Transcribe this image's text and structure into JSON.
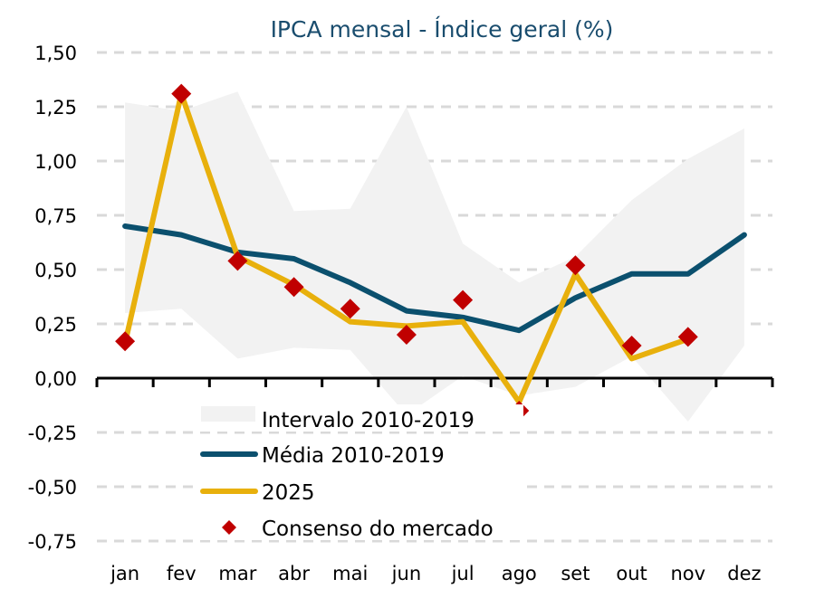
{
  "chart_data": {
    "type": "line",
    "title": "IPCA mensal - Índice geral (%)",
    "xlabel": "",
    "ylabel": "",
    "categories": [
      "jan",
      "fev",
      "mar",
      "abr",
      "mai",
      "jun",
      "jul",
      "ago",
      "set",
      "out",
      "nov",
      "dez"
    ],
    "ylim": [
      -0.75,
      1.5
    ],
    "yticks": [
      1.5,
      1.25,
      1.0,
      0.75,
      0.5,
      0.25,
      0.0,
      -0.25,
      -0.5,
      -0.75
    ],
    "ytick_labels": [
      "1,50",
      "1,25",
      "1,00",
      "0,75",
      "0,50",
      "0,25",
      "0,00",
      "-0,25",
      "-0,50",
      "-0,75"
    ],
    "grid": "horizontal dashed",
    "legend_placement": "bottom-left inside",
    "band": {
      "name": "Intervalo 2010-2019",
      "upper": [
        1.27,
        1.23,
        1.32,
        0.77,
        0.78,
        1.25,
        0.62,
        0.44,
        0.56,
        0.82,
        1.01,
        1.15
      ],
      "lower": [
        0.3,
        0.32,
        0.09,
        0.14,
        0.13,
        -0.17,
        0.01,
        -0.08,
        -0.04,
        0.1,
        -0.2,
        0.15
      ],
      "color": "#f2f2f2"
    },
    "series": [
      {
        "name": "Média 2010-2019",
        "type": "line",
        "color": "#0b506e",
        "values": [
          0.7,
          0.66,
          0.58,
          0.55,
          0.44,
          0.31,
          0.28,
          0.22,
          0.37,
          0.48,
          0.48,
          0.66
        ]
      },
      {
        "name": "2025",
        "type": "line",
        "color": "#e8b00c",
        "values": [
          0.16,
          1.31,
          0.56,
          0.43,
          0.26,
          0.24,
          0.26,
          -0.11,
          0.48,
          0.09,
          0.18,
          null
        ]
      },
      {
        "name": "Consenso do mercado",
        "type": "scatter",
        "marker": "diamond",
        "color": "#c00000",
        "values": [
          0.17,
          1.31,
          0.54,
          0.42,
          0.32,
          0.2,
          0.36,
          -0.15,
          0.52,
          0.15,
          0.19,
          null
        ]
      }
    ]
  }
}
